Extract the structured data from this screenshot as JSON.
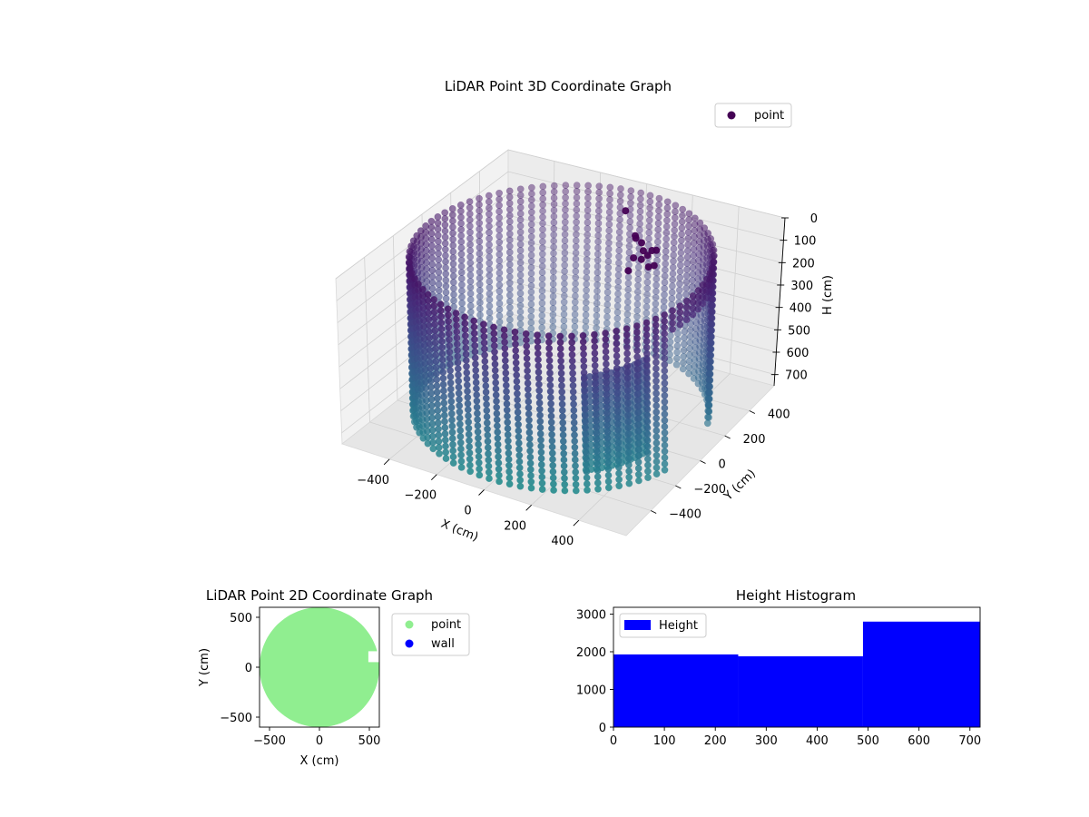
{
  "chart_data": [
    {
      "type": "scatter3d",
      "title": "LiDAR Point 3D Coordinate Graph",
      "xlabel": "X (cm)",
      "ylabel": "Y (cm)",
      "zlabel": "H (cm)",
      "xticks": [
        "−400",
        "−200",
        "0",
        "200",
        "400"
      ],
      "xtick_values": [
        -400,
        -200,
        0,
        200,
        400
      ],
      "yticks": [
        "−400",
        "−200",
        "0",
        "200",
        "400"
      ],
      "ytick_values": [
        -400,
        -200,
        0,
        200,
        400
      ],
      "zticks": [
        "0",
        "100",
        "200",
        "300",
        "400",
        "500",
        "600",
        "700"
      ],
      "ztick_values": [
        0,
        100,
        200,
        300,
        400,
        500,
        600,
        700
      ],
      "xlim": [
        -600,
        600
      ],
      "ylim": [
        -600,
        600
      ],
      "zlim": [
        0,
        750
      ],
      "z_inverted": true,
      "colormap": "viridis",
      "legend": {
        "entries": [
          "point"
        ],
        "placement": "top-right"
      },
      "description": "Cylindrical ring of scan points around the origin, radius about 550 cm, heights 0–720 cm, with an opening on the +X side and a small cluster near the top."
    },
    {
      "type": "scatter",
      "title": "LiDAR Point 2D Coordinate Graph",
      "xlabel": "X (cm)",
      "ylabel": "Y (cm)",
      "xticks": [
        "−500",
        "0",
        "500"
      ],
      "xtick_values": [
        -500,
        0,
        500
      ],
      "yticks": [
        "−500",
        "0",
        "500"
      ],
      "ytick_values": [
        -500,
        0,
        500
      ],
      "xlim": [
        -600,
        600
      ],
      "ylim": [
        -600,
        600
      ],
      "series": [
        {
          "name": "point",
          "color": "#90ee90"
        },
        {
          "name": "wall",
          "color": "#0000ff"
        }
      ],
      "legend": {
        "placement": "outside-right"
      }
    },
    {
      "type": "bar",
      "title": "Height Histogram",
      "xlabel": "",
      "ylabel": "",
      "bins": [
        [
          0,
          245
        ],
        [
          245,
          490
        ],
        [
          490,
          720
        ]
      ],
      "values": [
        1930,
        1880,
        2800
      ],
      "xticks": [
        "0",
        "100",
        "200",
        "300",
        "400",
        "500",
        "600",
        "700"
      ],
      "xtick_values": [
        0,
        100,
        200,
        300,
        400,
        500,
        600,
        700
      ],
      "yticks": [
        "0",
        "1000",
        "2000",
        "3000"
      ],
      "ytick_values": [
        0,
        1000,
        2000,
        3000
      ],
      "xlim": [
        0,
        720
      ],
      "ylim": [
        0,
        3180
      ],
      "series": [
        {
          "name": "Height",
          "color": "#0000ff"
        }
      ],
      "legend": {
        "placement": "top-left"
      }
    }
  ]
}
